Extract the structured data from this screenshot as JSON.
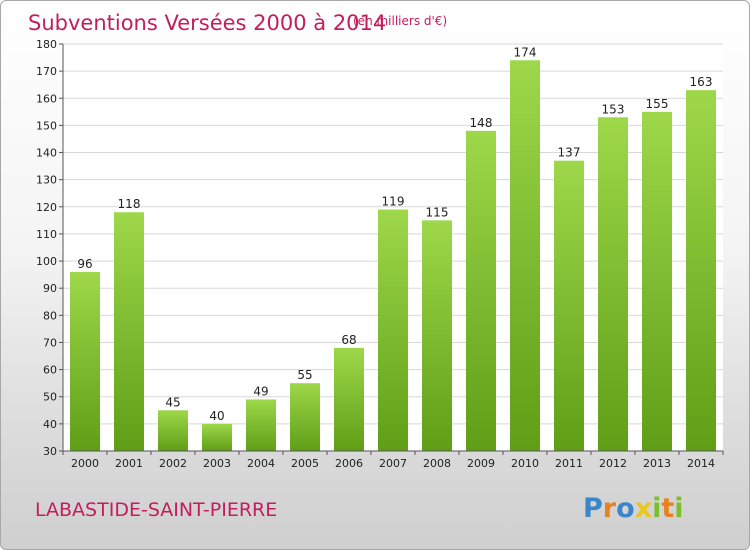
{
  "chart_data": {
    "type": "bar",
    "title": "Subventions Versées 2000 à 2014",
    "subtitle": "(en milliers d'€)",
    "categories": [
      "2000",
      "2001",
      "2002",
      "2003",
      "2004",
      "2005",
      "2006",
      "2007",
      "2008",
      "2009",
      "2010",
      "2011",
      "2012",
      "2013",
      "2014"
    ],
    "values": [
      96,
      118,
      45,
      40,
      49,
      55,
      68,
      119,
      115,
      148,
      174,
      137,
      153,
      155,
      163
    ],
    "ylim": [
      30,
      180
    ],
    "yticks": [
      30,
      40,
      50,
      60,
      70,
      80,
      90,
      100,
      110,
      120,
      130,
      140,
      150,
      160,
      170,
      180
    ],
    "xlabel": "",
    "ylabel": "",
    "grid": true,
    "bar_color": "#7cbf2c"
  },
  "location": {
    "name": "LABASTIDE-SAINT-PIERRE"
  },
  "brand": {
    "letters": [
      "P",
      "r",
      "o",
      "x",
      "i",
      "t",
      "i"
    ],
    "colors": [
      "#3a86c8",
      "#e8821e",
      "#3a86c8",
      "#e8c81e",
      "#7cbf2c",
      "#e8821e",
      "#7cbf2c"
    ]
  }
}
